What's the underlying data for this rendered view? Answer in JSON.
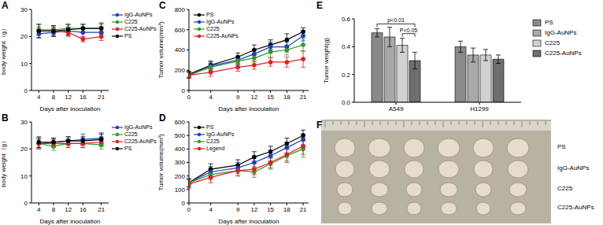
{
  "chart_data": [
    {
      "panel": "A",
      "type": "line",
      "x_label": "Days after inoculation",
      "y_label": "body weight（g）",
      "x": [
        4,
        8,
        12,
        16,
        21
      ],
      "xlim": [
        2,
        23
      ],
      "xticks": [
        4,
        8,
        12,
        16,
        21
      ],
      "ylim": [
        0,
        30
      ],
      "yticks": [
        0,
        10,
        20,
        30
      ],
      "legend": "right",
      "marker": "circle",
      "series": [
        {
          "name": "IgG-AuNPs",
          "color": "#1f3fbf",
          "values": [
            21,
            21.5,
            22,
            21.5,
            21.5
          ],
          "errors": [
            1.5,
            1.5,
            1.5,
            2,
            2
          ]
        },
        {
          "name": "C225",
          "color": "#2e9a2e",
          "values": [
            22.5,
            22.5,
            23,
            23,
            23
          ],
          "errors": [
            2,
            1.5,
            1.5,
            1.5,
            1.5
          ]
        },
        {
          "name": "C225-AuNPs",
          "color": "#e02020",
          "values": [
            22,
            22,
            21.5,
            19,
            20
          ],
          "errors": [
            1.5,
            1.5,
            1.5,
            1,
            1.5
          ]
        },
        {
          "name": "PS",
          "color": "#000000",
          "values": [
            22,
            22,
            22.5,
            23,
            23
          ],
          "errors": [
            2.5,
            2,
            2,
            1.5,
            2
          ]
        }
      ]
    },
    {
      "panel": "B",
      "type": "line",
      "x_label": "Days after inoculation",
      "y_label": "body weight（g）",
      "x": [
        4,
        8,
        12,
        16,
        21
      ],
      "xlim": [
        2,
        23
      ],
      "xticks": [
        4,
        8,
        12,
        16,
        21
      ],
      "ylim": [
        0,
        30
      ],
      "yticks": [
        0,
        10,
        20,
        30
      ],
      "legend": "right",
      "marker": "circle",
      "series": [
        {
          "name": "IgG-AuNPs",
          "color": "#1f3fbf",
          "values": [
            22,
            22.5,
            23,
            23.5,
            24
          ],
          "errors": [
            1.5,
            1.5,
            1.5,
            2,
            2
          ]
        },
        {
          "name": "C225",
          "color": "#2e9a2e",
          "values": [
            22,
            21,
            22,
            22,
            21.5
          ],
          "errors": [
            2,
            1.5,
            1.5,
            1.5,
            1.5
          ]
        },
        {
          "name": "C225-AuNPs",
          "color": "#e02020",
          "values": [
            22,
            22,
            22,
            22,
            22.5
          ],
          "errors": [
            2,
            1.5,
            1.5,
            1.5,
            1.5
          ]
        },
        {
          "name": "PS",
          "color": "#000000",
          "values": [
            22.5,
            22.5,
            23,
            23,
            23.5
          ],
          "errors": [
            2,
            1.5,
            1.5,
            1.5,
            2
          ]
        }
      ]
    },
    {
      "panel": "C",
      "type": "line",
      "x_label": "Days after inoculation",
      "y_label": "Tumor volume(mm³)",
      "x": [
        0,
        4,
        9,
        12,
        15,
        18,
        21
      ],
      "xlim": [
        0,
        22
      ],
      "xticks": [
        0,
        4,
        9,
        12,
        15,
        18,
        21
      ],
      "ylim": [
        0,
        800
      ],
      "yticks": [
        0,
        200,
        400,
        600,
        800
      ],
      "legend": "upper left",
      "marker": "circle",
      "series": [
        {
          "name": "PS",
          "color": "#000000",
          "values": [
            160,
            250,
            330,
            400,
            450,
            500,
            580
          ],
          "errors": [
            30,
            40,
            40,
            50,
            50,
            60,
            40
          ]
        },
        {
          "name": "IgG-AuNPs",
          "color": "#1f3fbf",
          "values": [
            150,
            240,
            300,
            360,
            430,
            430,
            540
          ],
          "errors": [
            30,
            40,
            40,
            40,
            50,
            50,
            50
          ]
        },
        {
          "name": "C225",
          "color": "#2e9a2e",
          "values": [
            150,
            230,
            290,
            320,
            380,
            400,
            450
          ],
          "errors": [
            30,
            40,
            40,
            40,
            50,
            50,
            60
          ]
        },
        {
          "name": "C225-AuNPs",
          "color": "#e02020",
          "values": [
            150,
            180,
            230,
            250,
            280,
            280,
            310
          ],
          "errors": [
            30,
            40,
            40,
            40,
            40,
            50,
            80
          ]
        }
      ]
    },
    {
      "panel": "D",
      "type": "line",
      "x_label": "Days after inoculation",
      "y_label": "Tumor volume(mm³)",
      "x": [
        0,
        4,
        9,
        12,
        15,
        18,
        21
      ],
      "xlim": [
        0,
        22
      ],
      "xticks": [
        0,
        4,
        9,
        12,
        15,
        18,
        21
      ],
      "ylim": [
        0,
        600
      ],
      "yticks": [
        0,
        100,
        200,
        300,
        400,
        500,
        600
      ],
      "legend": "upper left",
      "marker": "circle",
      "series": [
        {
          "name": "PS",
          "color": "#000000",
          "values": [
            150,
            250,
            280,
            340,
            380,
            440,
            500
          ],
          "errors": [
            30,
            40,
            40,
            40,
            40,
            40,
            40
          ]
        },
        {
          "name": "IgG-AuNPs",
          "color": "#1f3fbf",
          "values": [
            150,
            230,
            260,
            300,
            350,
            410,
            470
          ],
          "errors": [
            30,
            40,
            40,
            40,
            40,
            40,
            40
          ]
        },
        {
          "name": "C225",
          "color": "#2e9a2e",
          "values": [
            150,
            210,
            240,
            230,
            290,
            350,
            400
          ],
          "errors": [
            30,
            40,
            40,
            40,
            40,
            50,
            60
          ]
        },
        {
          "name": "Legend",
          "color": "#e02020",
          "values": [
            140,
            190,
            240,
            250,
            300,
            360,
            420
          ],
          "errors": [
            30,
            40,
            40,
            40,
            40,
            50,
            60
          ]
        }
      ]
    },
    {
      "panel": "E",
      "type": "bar",
      "y_label": "Tumor weight(g)",
      "categories": [
        "A549",
        "H1299"
      ],
      "ylim": [
        0,
        0.6
      ],
      "yticks": [
        {
          "value": 0,
          "label": "0.0"
        },
        0.2,
        0.4,
        0.6
      ],
      "legend": "right",
      "series": [
        {
          "name": "PS",
          "color": "#8a8a8a",
          "values": [
            0.5,
            0.4
          ],
          "errors": [
            0.03,
            0.04
          ]
        },
        {
          "name": "IgG-AuNPs",
          "color": "#a8a8a8",
          "values": [
            0.47,
            0.34
          ],
          "errors": [
            0.07,
            0.05
          ]
        },
        {
          "name": "C225",
          "color": "#d2d2d2",
          "values": [
            0.41,
            0.34
          ],
          "errors": [
            0.05,
            0.04
          ]
        },
        {
          "name": "C225-AuNPs",
          "color": "#6e6e6e",
          "values": [
            0.3,
            0.31
          ],
          "errors": [
            0.06,
            0.03
          ]
        }
      ],
      "annotations": [
        {
          "text": "p<0.01",
          "from": "PS",
          "to": "C225-AuNPs",
          "category": "A549"
        },
        {
          "text": "P<0.05",
          "from": "C225",
          "to": "C225-AuNPs",
          "category": "A549"
        }
      ]
    }
  ],
  "photo": {
    "panel": "F",
    "row_labels": [
      "PS",
      "IgG-AuNPs",
      "C225",
      "C225-AuNPs"
    ]
  }
}
